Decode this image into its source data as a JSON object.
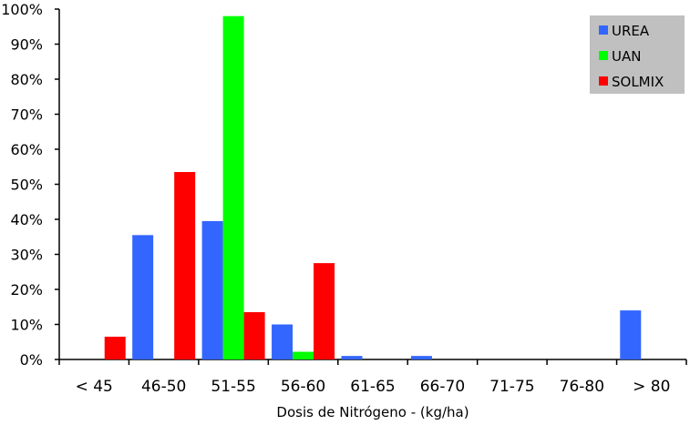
{
  "chart_data": {
    "type": "bar",
    "title": "",
    "xlabel": "Dosis de Nitrógeno - (kg/ha)",
    "ylabel": "",
    "ylim": [
      0,
      100
    ],
    "y_ticks": [
      "0%",
      "10%",
      "20%",
      "30%",
      "40%",
      "50%",
      "60%",
      "70%",
      "80%",
      "90%",
      "100%"
    ],
    "categories": [
      "< 45",
      "46-50",
      "51-55",
      "56-60",
      "61-65",
      "66-70",
      "71-75",
      "76-80",
      "> 80"
    ],
    "series": [
      {
        "name": "UREA",
        "color": "#3366ff",
        "values": [
          0,
          35.5,
          39.5,
          10,
          1,
          1,
          0,
          0,
          14
        ]
      },
      {
        "name": "UAN",
        "color": "#00ff00",
        "values": [
          0,
          0,
          98,
          2.2,
          0,
          0,
          0,
          0,
          0
        ]
      },
      {
        "name": "SOLMIX",
        "color": "#ff0000",
        "values": [
          6.5,
          53.5,
          13.5,
          27.5,
          0,
          0,
          0,
          0,
          0
        ]
      }
    ],
    "legend_position": "top-right",
    "legend_background": "#c0c0c0",
    "grid": false
  }
}
